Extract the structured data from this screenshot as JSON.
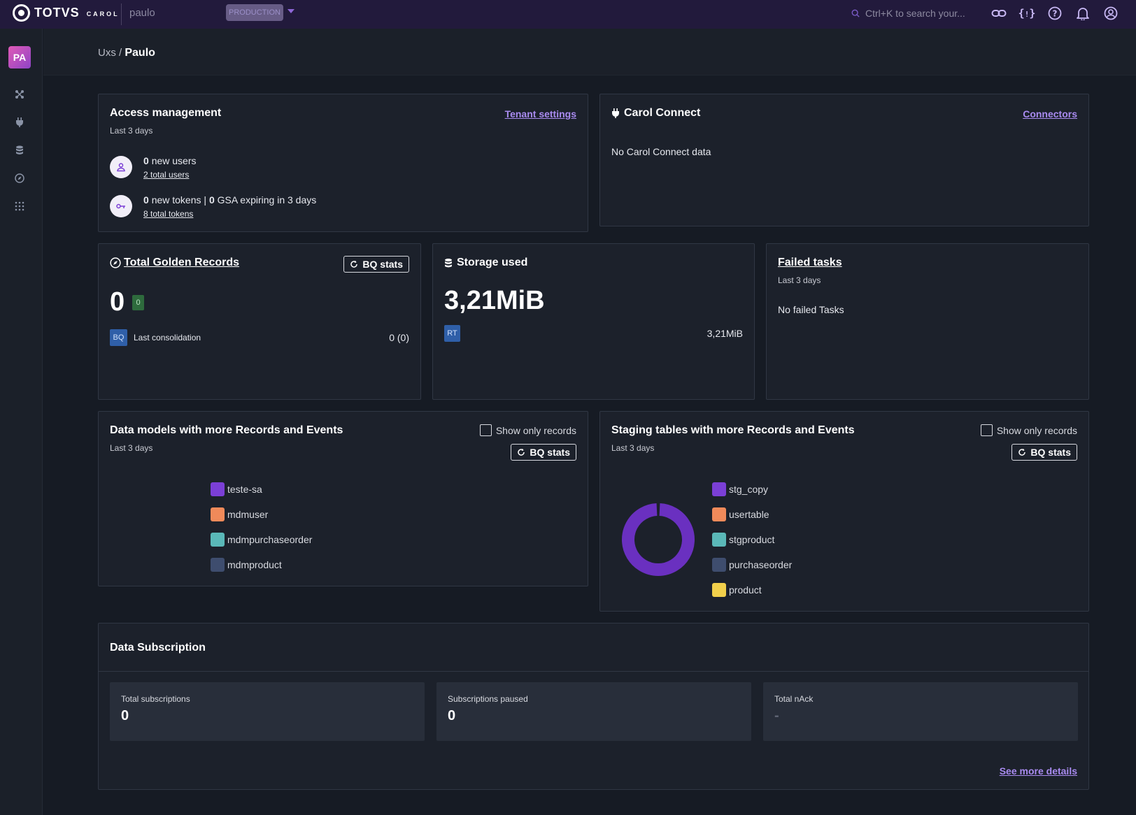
{
  "topbar": {
    "brand": "TOTVS",
    "brand_sub": "CAROL",
    "tenant": "paulo",
    "environment": "PRODUCTION",
    "search_placeholder": "Ctrl+K to search your..."
  },
  "sidebar": {
    "avatar_initials": "PA",
    "items": [
      "connections-icon",
      "plug-icon",
      "database-icon",
      "compass-icon",
      "apps-grid-icon"
    ]
  },
  "breadcrumb": {
    "parent": "Uxs",
    "separator": "/",
    "current": "Paulo"
  },
  "access_management": {
    "title": "Access management",
    "subtitle": "Last 3 days",
    "link": "Tenant settings",
    "users": {
      "count": "0",
      "label": "new users",
      "total_link": "2 total users"
    },
    "tokens": {
      "count": "0",
      "label": "new tokens",
      "separator": "|",
      "gsa_count": "0",
      "gsa_label": "GSA expiring in 3 days",
      "total_link": "8 total tokens"
    }
  },
  "carol_connect": {
    "title": "Carol Connect",
    "link": "Connectors",
    "empty_text": "No Carol Connect data"
  },
  "golden_records": {
    "title": "Total Golden Records",
    "button": "BQ stats",
    "value": "0",
    "badge": "0",
    "source_badge": "BQ",
    "consolidation_label": "Last consolidation",
    "consolidation_value": "0 (0)"
  },
  "storage": {
    "title": "Storage used",
    "value": "3,21MiB",
    "source_badge": "RT",
    "source_value": "3,21MiB"
  },
  "failed_tasks": {
    "title": "Failed tasks",
    "subtitle": "Last 3 days",
    "empty_text": "No failed Tasks"
  },
  "data_models": {
    "title": "Data models with more Records and Events",
    "subtitle": "Last 3 days",
    "checkbox_label": "Show only records",
    "button": "BQ stats",
    "legend": [
      {
        "label": "teste-sa",
        "color": "#7b3fd6"
      },
      {
        "label": "mdmuser",
        "color": "#f08a5a"
      },
      {
        "label": "mdmpurchaseorder",
        "color": "#5ab8b8"
      },
      {
        "label": "mdmproduct",
        "color": "#3e4d6e"
      }
    ]
  },
  "staging_tables": {
    "title": "Staging tables with more Records and Events",
    "subtitle": "Last 3 days",
    "checkbox_label": "Show only records",
    "button": "BQ stats",
    "legend": [
      {
        "label": "stg_copy",
        "color": "#7b3fd6"
      },
      {
        "label": "usertable",
        "color": "#f08a5a"
      },
      {
        "label": "stgproduct",
        "color": "#5ab8b8"
      },
      {
        "label": "purchaseorder",
        "color": "#3e4d6e"
      },
      {
        "label": "product",
        "color": "#f2d04b"
      }
    ],
    "donut": {
      "main_share": 0.985,
      "main_color": "#6a30c0"
    }
  },
  "data_subscription": {
    "title": "Data Subscription",
    "stats": [
      {
        "label": "Total subscriptions",
        "value": "0"
      },
      {
        "label": "Subscriptions paused",
        "value": "0"
      },
      {
        "label": "Total nAck",
        "value": "-"
      }
    ],
    "link": "See more details"
  }
}
